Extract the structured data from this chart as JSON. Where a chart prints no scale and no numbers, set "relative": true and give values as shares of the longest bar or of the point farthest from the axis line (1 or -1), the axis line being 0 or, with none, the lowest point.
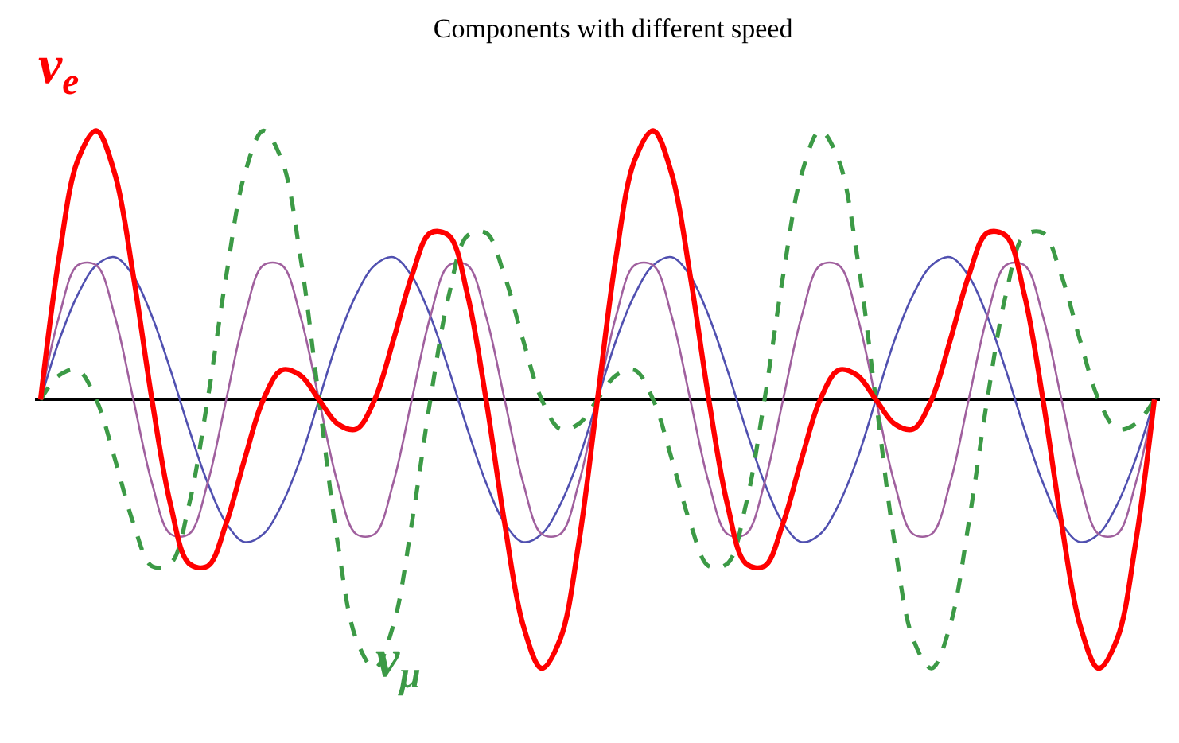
{
  "chart_data": {
    "type": "line",
    "title": "Components with different speed",
    "relative": true,
    "legend": false,
    "marker": "none",
    "categories": [
      null,
      null,
      null,
      null,
      null,
      null,
      null,
      null,
      null,
      null,
      null,
      null,
      null,
      null,
      null,
      null,
      null,
      null,
      null,
      null,
      null,
      null,
      null,
      null,
      null,
      null,
      null,
      null,
      null,
      null,
      null,
      null,
      null,
      null,
      null,
      null,
      null,
      null,
      null,
      null,
      null,
      null,
      null,
      null,
      null,
      null,
      null,
      null,
      null,
      null,
      null,
      null,
      null,
      null,
      null,
      null,
      null,
      null,
      null,
      null,
      null
    ],
    "series": [
      {
        "color": "#5050b0",
        "line_style": "solid",
        "values": [
          0,
          0.22,
          0.39,
          0.5,
          0.53,
          0.46,
          0.31,
          0.11,
          -0.11,
          -0.31,
          -0.46,
          -0.53,
          -0.5,
          -0.39,
          -0.22,
          0,
          0.22,
          0.39,
          0.5,
          0.53,
          0.46,
          0.31,
          0.11,
          -0.11,
          -0.31,
          -0.46,
          -0.53,
          -0.5,
          -0.39,
          -0.22,
          0,
          0.22,
          0.39,
          0.5,
          0.53,
          0.46,
          0.31,
          0.11,
          -0.11,
          -0.31,
          -0.46,
          -0.53,
          -0.5,
          -0.39,
          -0.22,
          0,
          0.22,
          0.39,
          0.5,
          0.53,
          0.46,
          0.31,
          0.11,
          -0.11,
          -0.31,
          -0.46,
          -0.53,
          -0.5,
          -0.39,
          -0.22,
          0
        ]
      },
      {
        "color": "#a0609e",
        "line_style": "solid",
        "values": [
          0,
          0.31,
          0.5,
          0.5,
          0.31,
          0,
          -0.31,
          -0.5,
          -0.5,
          -0.31,
          0,
          0.31,
          0.5,
          0.5,
          0.31,
          0,
          -0.31,
          -0.5,
          -0.5,
          -0.31,
          0,
          0.31,
          0.5,
          0.5,
          0.31,
          0,
          -0.31,
          -0.5,
          -0.5,
          -0.31,
          0,
          0.31,
          0.5,
          0.5,
          0.31,
          0,
          -0.31,
          -0.5,
          -0.5,
          -0.31,
          0,
          0.31,
          0.5,
          0.5,
          0.31,
          0,
          -0.31,
          -0.5,
          -0.5,
          -0.31,
          0,
          0.31,
          0.5,
          0.5,
          0.31,
          0,
          -0.31,
          -0.5,
          -0.5,
          -0.31,
          0
        ]
      },
      {
        "name": "ν$_{μ}$",
        "color": "#3c9a46",
        "line_style": "dashed",
        "values": [
          0,
          0.09,
          0.11,
          0,
          -0.22,
          -0.46,
          -0.62,
          -0.61,
          -0.39,
          0,
          0.46,
          0.84,
          1.0,
          0.89,
          0.53,
          0,
          -0.53,
          -0.89,
          -1.0,
          -0.84,
          -0.46,
          0,
          0.39,
          0.61,
          0.62,
          0.46,
          0.22,
          0,
          -0.11,
          -0.09,
          0,
          0.09,
          0.11,
          0,
          -0.22,
          -0.46,
          -0.62,
          -0.61,
          -0.39,
          0,
          0.46,
          0.84,
          1.0,
          0.89,
          0.53,
          0,
          -0.53,
          -0.89,
          -1.0,
          -0.84,
          -0.46,
          0,
          0.39,
          0.61,
          0.62,
          0.46,
          0.22,
          0,
          -0.11,
          -0.09,
          0
        ]
      },
      {
        "name": "ν$_{e}$",
        "color": "#ff0000",
        "line_style": "solid",
        "values": [
          0,
          0.53,
          0.89,
          1.0,
          0.84,
          0.46,
          0,
          -0.39,
          -0.61,
          -0.62,
          -0.46,
          -0.22,
          0,
          0.11,
          0.09,
          0,
          -0.09,
          -0.11,
          0,
          0.22,
          0.46,
          0.62,
          0.61,
          0.39,
          0,
          -0.46,
          -0.84,
          -1.0,
          -0.89,
          -0.53,
          0,
          0.53,
          0.89,
          1.0,
          0.84,
          0.46,
          0,
          -0.39,
          -0.61,
          -0.62,
          -0.46,
          -0.22,
          0,
          0.11,
          0.09,
          0,
          -0.09,
          -0.11,
          0,
          0.22,
          0.46,
          0.62,
          0.61,
          0.39,
          0,
          -0.46,
          -0.84,
          -1.0,
          -0.89,
          -0.53,
          0
        ]
      }
    ]
  }
}
